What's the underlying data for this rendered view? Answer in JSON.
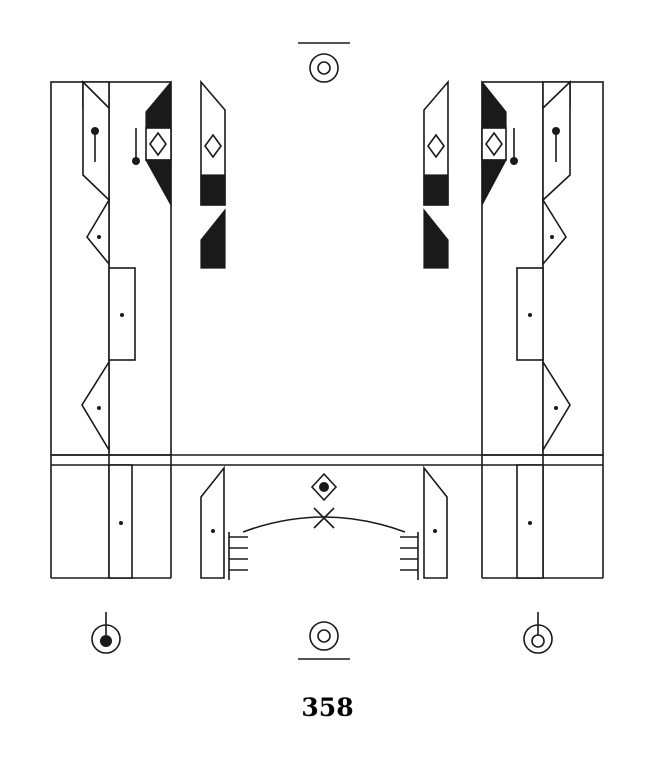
{
  "page_number": "358",
  "colors": {
    "ink": "#1a1a1a",
    "paper": "#ffffff"
  },
  "symbols": {
    "front_sign": "front-sign-icon",
    "back_sign": "back-sign-icon",
    "left_performer_pin": "left-pin-icon",
    "right_performer_pin": "right-pin-icon",
    "diamond_grip": "diamond-icon",
    "center_cross": "cross-icon",
    "center_contact": "diamond-dot-icon"
  }
}
